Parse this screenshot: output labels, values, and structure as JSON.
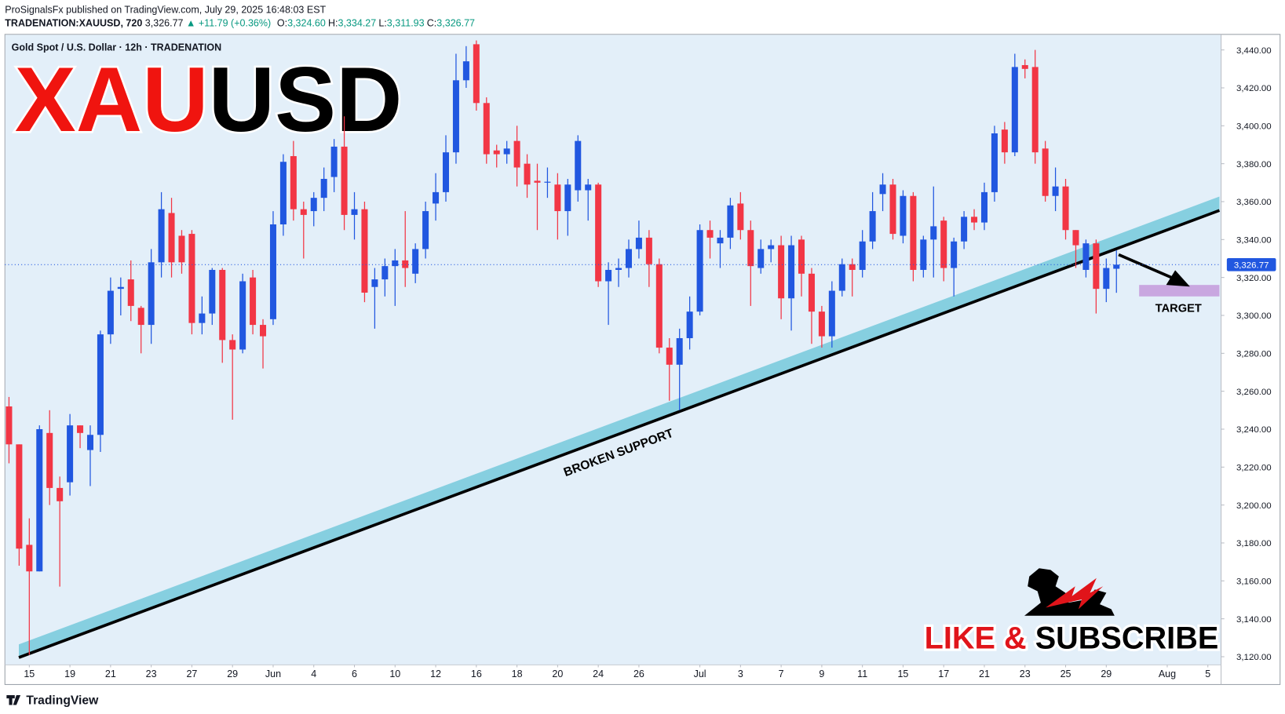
{
  "header": {
    "publisher": "ProSignalsFx published on TradingView.com, July 29, 2025 16:48:03 EST",
    "symbol": "TRADENATION:XAUUSD, 720",
    "last": "3,326.77",
    "change": "▲ +11.79 (+0.36%)",
    "ohlc": [
      {
        "label": "O:",
        "value": "3,324.60"
      },
      {
        "label": "H:",
        "value": "3,334.27"
      },
      {
        "label": "L:",
        "value": "3,311.93"
      },
      {
        "label": "C:",
        "value": "3,326.77"
      }
    ]
  },
  "chart_data": {
    "type": "candlestick",
    "title": "Gold Spot / U.S. Dollar · 12h · TRADENATION",
    "overlay_title": [
      "XAU",
      "USD"
    ],
    "up_color": "#2157e0",
    "down_color": "#f23645",
    "open": [
      3252,
      3232,
      3179,
      3165,
      3238,
      3209,
      3212,
      3242,
      3229,
      3237,
      3290,
      3314,
      3319,
      3304,
      3295,
      3328,
      3354,
      3342,
      3343,
      3296,
      3301,
      3324,
      3287,
      3282,
      3320,
      3295,
      3298,
      3348,
      3384,
      3356,
      3355,
      3362,
      3373,
      3389,
      3353,
      3356,
      3315,
      3319,
      3326,
      3329,
      3322,
      3335,
      3359,
      3365,
      3386,
      3424,
      3443,
      3412,
      3387,
      3385,
      3392,
      3380,
      3371,
      3370,
      3369,
      3355,
      3366,
      3366,
      3369,
      3318,
      3324,
      3325,
      3335,
      3341,
      3327,
      3283,
      3274,
      3288,
      3302,
      3345,
      3338,
      3341,
      3359,
      3345,
      3325,
      3335,
      3337,
      3309,
      3340,
      3322,
      3302,
      3289,
      3313,
      3327,
      3324,
      3339,
      3364,
      3369,
      3342,
      3363,
      3324,
      3340,
      3350,
      3325,
      3339,
      3352,
      3349,
      3365,
      3398,
      3386,
      3432,
      3431,
      3388,
      3363,
      3368,
      3345,
      3324,
      3338,
      3314,
      3324.6
    ],
    "high": [
      3257,
      3232,
      3193,
      3242,
      3250,
      3215,
      3248,
      3242,
      3242,
      3292,
      3320,
      3320,
      3329,
      3305,
      3335,
      3365,
      3362,
      3345,
      3345,
      3310,
      3325,
      3325,
      3290,
      3322,
      3324,
      3298,
      3355,
      3385,
      3392,
      3360,
      3365,
      3378,
      3393,
      3405,
      3365,
      3360,
      3325,
      3330,
      3335,
      3355,
      3338,
      3360,
      3375,
      3395,
      3438,
      3442,
      3445,
      3415,
      3390,
      3392,
      3400,
      3385,
      3380,
      3378,
      3375,
      3372,
      3395,
      3372,
      3370,
      3328,
      3330,
      3340,
      3350,
      3345,
      3330,
      3288,
      3293,
      3310,
      3348,
      3350,
      3345,
      3362,
      3365,
      3350,
      3340,
      3340,
      3342,
      3342,
      3342,
      3325,
      3305,
      3318,
      3330,
      3330,
      3345,
      3365,
      3375,
      3372,
      3366,
      3365,
      3342,
      3368,
      3352,
      3341,
      3355,
      3356,
      3370,
      3400,
      3402,
      3438,
      3435,
      3440,
      3392,
      3378,
      3372,
      3345,
      3340,
      3340,
      3330,
      3334.27
    ],
    "low": [
      3222,
      3168,
      3121,
      3165,
      3200,
      3157,
      3205,
      3230,
      3210,
      3228,
      3285,
      3300,
      3297,
      3280,
      3285,
      3320,
      3320,
      3322,
      3290,
      3290,
      3295,
      3275,
      3245,
      3280,
      3290,
      3272,
      3295,
      3342,
      3350,
      3330,
      3347,
      3355,
      3365,
      3345,
      3340,
      3307,
      3293,
      3310,
      3305,
      3315,
      3317,
      3330,
      3350,
      3360,
      3380,
      3420,
      3408,
      3380,
      3378,
      3380,
      3368,
      3362,
      3345,
      3362,
      3340,
      3342,
      3360,
      3350,
      3315,
      3295,
      3315,
      3320,
      3330,
      3315,
      3280,
      3255,
      3250,
      3282,
      3300,
      3330,
      3325,
      3335,
      3340,
      3305,
      3322,
      3328,
      3298,
      3292,
      3310,
      3285,
      3283,
      3283,
      3310,
      3310,
      3320,
      3335,
      3355,
      3340,
      3338,
      3318,
      3320,
      3320,
      3318,
      3310,
      3335,
      3345,
      3345,
      3360,
      3380,
      3384,
      3425,
      3380,
      3360,
      3355,
      3340,
      3325,
      3320,
      3301,
      3307,
      3311.93
    ],
    "close": [
      3232,
      3177,
      3165,
      3240,
      3209,
      3202,
      3242,
      3238,
      3237,
      3290,
      3313,
      3315,
      3305,
      3295,
      3328,
      3356,
      3328,
      3328,
      3296,
      3301,
      3324,
      3287,
      3282,
      3318,
      3295,
      3289,
      3348,
      3381,
      3356,
      3353,
      3362,
      3372,
      3389,
      3353,
      3356,
      3312,
      3319,
      3326,
      3329,
      3325,
      3335,
      3355,
      3365,
      3386,
      3424,
      3434,
      3412,
      3385,
      3385,
      3388,
      3378,
      3369,
      3370,
      3370.5,
      3355,
      3369,
      3392,
      3369,
      3318,
      3324,
      3325,
      3335,
      3341,
      3327,
      3283,
      3274,
      3288,
      3302,
      3345,
      3341,
      3341,
      3358,
      3345,
      3326,
      3335,
      3337,
      3309,
      3337,
      3322,
      3302,
      3289,
      3313,
      3327,
      3324,
      3339,
      3355,
      3369,
      3343,
      3363,
      3324,
      3340,
      3347,
      3325,
      3339,
      3352,
      3349,
      3365,
      3396,
      3386,
      3431,
      3430,
      3386,
      3363,
      3368,
      3345,
      3337,
      3338,
      3314,
      3325,
      3326.77
    ],
    "ylim": [
      3115.7,
      3448.2
    ],
    "yticks": [
      {
        "value": 3120,
        "label": "3,120.00"
      },
      {
        "value": 3140,
        "label": "3,140.00"
      },
      {
        "value": 3160,
        "label": "3,160.00"
      },
      {
        "value": 3180,
        "label": "3,180.00"
      },
      {
        "value": 3200,
        "label": "3,200.00"
      },
      {
        "value": 3220,
        "label": "3,220.00"
      },
      {
        "value": 3240,
        "label": "3,240.00"
      },
      {
        "value": 3260,
        "label": "3,260.00"
      },
      {
        "value": 3280,
        "label": "3,280.00"
      },
      {
        "value": 3300,
        "label": "3,300.00"
      },
      {
        "value": 3320,
        "label": "3,320.00"
      },
      {
        "value": 3340,
        "label": "3,340.00"
      },
      {
        "value": 3360,
        "label": "3,360.00"
      },
      {
        "value": 3380,
        "label": "3,380.00"
      },
      {
        "value": 3400,
        "label": "3,400.00"
      },
      {
        "value": 3420,
        "label": "3,420.00"
      },
      {
        "value": 3440,
        "label": "3,440.00"
      }
    ],
    "xlim": [
      -0.4,
      119.3
    ],
    "xticks": [
      {
        "value": 2,
        "label": "15"
      },
      {
        "value": 6,
        "label": "19"
      },
      {
        "value": 10,
        "label": "21"
      },
      {
        "value": 14,
        "label": "23"
      },
      {
        "value": 18,
        "label": "27"
      },
      {
        "value": 22,
        "label": "29"
      },
      {
        "value": 26,
        "label": "Jun"
      },
      {
        "value": 30,
        "label": "4"
      },
      {
        "value": 34,
        "label": "6"
      },
      {
        "value": 38,
        "label": "10"
      },
      {
        "value": 42,
        "label": "12"
      },
      {
        "value": 46,
        "label": "16"
      },
      {
        "value": 50,
        "label": "18"
      },
      {
        "value": 54,
        "label": "20"
      },
      {
        "value": 58,
        "label": "24"
      },
      {
        "value": 62,
        "label": "26"
      },
      {
        "value": 68,
        "label": "Jul"
      },
      {
        "value": 72,
        "label": "3"
      },
      {
        "value": 76,
        "label": "7"
      },
      {
        "value": 80,
        "label": "9"
      },
      {
        "value": 84,
        "label": "11"
      },
      {
        "value": 88,
        "label": "15"
      },
      {
        "value": 92,
        "label": "17"
      },
      {
        "value": 96,
        "label": "21"
      },
      {
        "value": 100,
        "label": "23"
      },
      {
        "value": 104,
        "label": "25"
      },
      {
        "value": 108,
        "label": "29"
      },
      {
        "value": 114,
        "label": "Aug"
      },
      {
        "value": 118,
        "label": "5"
      }
    ],
    "last_price": {
      "value": 3326.77,
      "label": "3,326.77"
    },
    "annotations": [
      "BROKEN SUPPORT",
      "TARGET"
    ],
    "promo": [
      "LIKE &",
      "SUBSCRIBE"
    ],
    "brand": "TradingView"
  }
}
